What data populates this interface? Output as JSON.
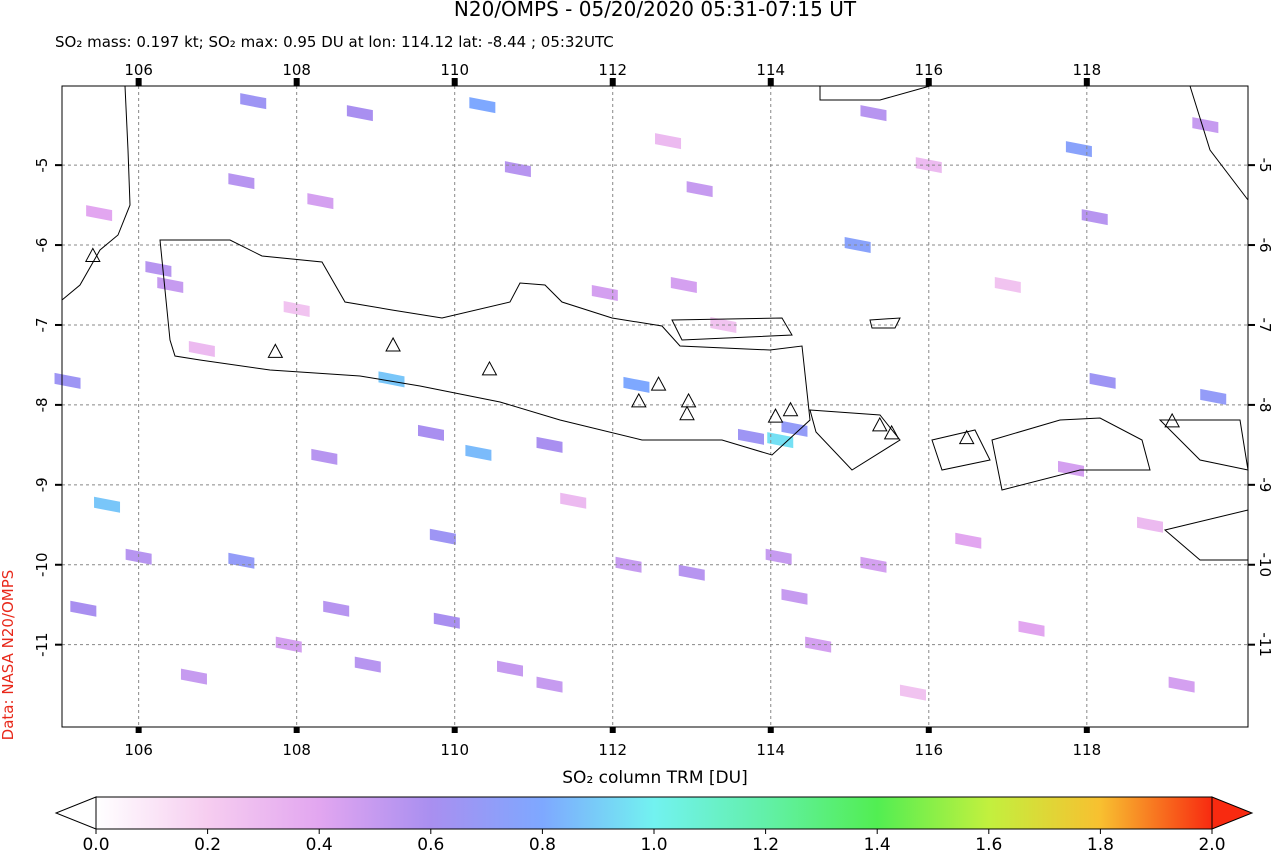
{
  "chart_data": {
    "type": "map",
    "title": "N20/OMPS - 05/20/2020 05:31-07:15 UT",
    "subtitle": "SO₂ mass: 0.197 kt; SO₂ max: 0.95 DU at lon: 114.12 lat: -8.44 ; 05:32UTC",
    "colorbar_label": "SO₂ column TRM [DU]",
    "credit": "Data: NASA N20/OMPS",
    "xlim": [
      105.03,
      120.04
    ],
    "ylim": [
      -12.03,
      -4.01
    ],
    "xticks": [
      106,
      108,
      110,
      112,
      114,
      116,
      118
    ],
    "yticks": [
      -5,
      -6,
      -7,
      -8,
      -9,
      -10,
      -11
    ],
    "grid": true,
    "clim": [
      0,
      2
    ],
    "cticks": [
      {
        "value": 0,
        "label": "0.0"
      },
      {
        "value": 0.2,
        "label": "0.2"
      },
      {
        "value": 0.4,
        "label": "0.4"
      },
      {
        "value": 0.6,
        "label": "0.6"
      },
      {
        "value": 0.8,
        "label": "0.8"
      },
      {
        "value": 1,
        "label": "1.0"
      },
      {
        "value": 1.2,
        "label": "1.2"
      },
      {
        "value": 1.4,
        "label": "1.4"
      },
      {
        "value": 1.6,
        "label": "1.6"
      },
      {
        "value": 1.8,
        "label": "1.8"
      },
      {
        "value": 2,
        "label": "2.0"
      }
    ],
    "colormap": [
      "#ffffff",
      "#f6cdf0",
      "#e2a6f0",
      "#a98ff0",
      "#7ea8ff",
      "#72f2f0",
      "#62f0a8",
      "#52ee52",
      "#c2f03e",
      "#f8c030",
      "#f82a10"
    ],
    "pixels": {
      "lon": [
        114.12,
        109.2,
        105.6,
        110.3,
        110.35,
        112.3,
        107.45,
        108.8,
        107.3,
        106.25,
        106.4,
        105.1,
        108.3,
        110.8,
        113.1,
        115.3,
        115.1,
        117.9,
        118.1,
        119.5,
        118.2,
        119.6,
        113.75,
        114.3,
        111.2,
        109.7,
        108.35,
        109.85,
        107.3,
        105.3,
        106.0,
        108.5,
        109.9,
        108.9,
        111.2,
        110.7,
        112.2,
        113.0,
        114.1,
        115.3,
        114.3,
        116.5,
        117.3,
        119.2,
        117.8,
        112.9,
        111.9,
        105.5,
        114.6,
        106.7,
        107.9,
        106.8,
        108.0,
        111.5,
        113.4,
        116.0,
        117.0,
        118.8,
        115.8,
        112.7
      ],
      "lat": [
        -8.44,
        -7.68,
        -9.25,
        -8.6,
        -4.25,
        -7.75,
        -4.2,
        -4.35,
        -5.2,
        -6.3,
        -6.5,
        -7.7,
        -5.45,
        -5.05,
        -5.3,
        -4.35,
        -6.0,
        -4.8,
        -5.65,
        -4.5,
        -7.7,
        -7.9,
        -8.4,
        -8.3,
        -8.5,
        -8.35,
        -8.65,
        -9.65,
        -9.95,
        -10.55,
        -9.9,
        -10.55,
        -10.7,
        -11.25,
        -11.5,
        -11.3,
        -10.0,
        -10.1,
        -9.9,
        -10.0,
        -10.4,
        -9.7,
        -10.8,
        -11.5,
        -8.8,
        -6.5,
        -6.6,
        -5.6,
        -11.0,
        -11.4,
        -11.0,
        -7.3,
        -6.8,
        -9.2,
        -7.0,
        -5.0,
        -6.5,
        -9.5,
        -11.6,
        -4.7
      ],
      "values": [
        0.95,
        0.88,
        0.88,
        0.85,
        0.8,
        0.8,
        0.65,
        0.6,
        0.55,
        0.55,
        0.5,
        0.65,
        0.45,
        0.55,
        0.5,
        0.55,
        0.75,
        0.75,
        0.55,
        0.5,
        0.65,
        0.7,
        0.65,
        0.7,
        0.6,
        0.6,
        0.55,
        0.65,
        0.7,
        0.6,
        0.55,
        0.55,
        0.6,
        0.55,
        0.5,
        0.5,
        0.5,
        0.55,
        0.5,
        0.45,
        0.5,
        0.4,
        0.4,
        0.45,
        0.45,
        0.45,
        0.45,
        0.4,
        0.45,
        0.5,
        0.45,
        0.3,
        0.25,
        0.3,
        0.25,
        0.3,
        0.25,
        0.3,
        0.25,
        0.3
      ]
    },
    "volcanoes": {
      "lon": [
        105.42,
        107.73,
        109.22,
        110.44,
        112.33,
        112.58,
        112.96,
        112.94,
        114.06,
        114.25,
        115.38,
        115.53,
        116.48,
        119.08
      ],
      "lat": [
        -6.13,
        -7.33,
        -7.25,
        -7.55,
        -7.95,
        -7.74,
        -7.95,
        -8.11,
        -8.14,
        -8.06,
        -8.25,
        -8.35,
        -8.41,
        -8.2
      ]
    }
  }
}
